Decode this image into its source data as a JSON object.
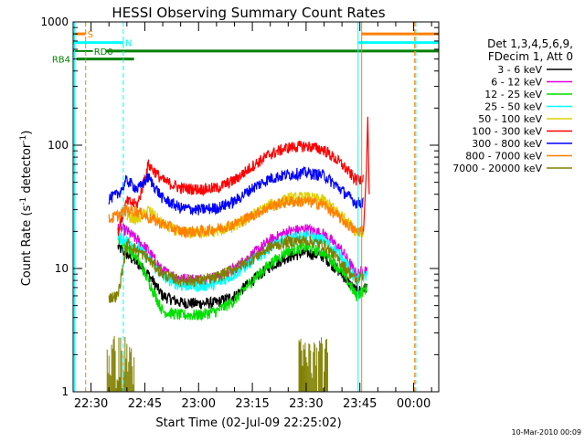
{
  "chart_data": {
    "type": "line",
    "title": "HESSI Observing Summary Count Rates",
    "xlabel": "Start Time (02-Jul-09 22:25:02)",
    "ylabel": "Count Rate (s⁻¹ detector⁻¹)",
    "ylabel_main": "Count Rate (s",
    "ylabel_sup1": "-1",
    "ylabel_mid": " detector",
    "ylabel_sup2": "-1",
    "ylabel_end": ")",
    "y_scale": "log",
    "ylim": [
      1,
      1000
    ],
    "y_ticks": [
      "1",
      "10",
      "100",
      "1000"
    ],
    "xlim_minutes": [
      -5,
      97
    ],
    "x_ticks": [
      {
        "label": "22:30",
        "minute": 0
      },
      {
        "label": "22:45",
        "minute": 15
      },
      {
        "label": "23:00",
        "minute": 30
      },
      {
        "label": "23:15",
        "minute": 45
      },
      {
        "label": "23:30",
        "minute": 60
      },
      {
        "label": "23:45",
        "minute": 75
      },
      {
        "label": "00:00",
        "minute": 90
      }
    ],
    "grid": false,
    "legend_position": "right",
    "legend_header": [
      "Det 1,3,4,5,6,9,",
      "FDecim 1, Att 0"
    ],
    "timestamp": "10-Mar-2010 00:09",
    "flag_labels": {
      "s": "S",
      "n": "N",
      "rd0": "RD0",
      "rb4": "RB4"
    },
    "series": [
      {
        "name": "3 - 6 keV",
        "color": "#000000",
        "anchors": [
          [
            7.5,
            15
          ],
          [
            10,
            13
          ],
          [
            13,
            11
          ],
          [
            16,
            9
          ],
          [
            20,
            6
          ],
          [
            25,
            5.3
          ],
          [
            30,
            5.2
          ],
          [
            35,
            5.3
          ],
          [
            40,
            6
          ],
          [
            45,
            8
          ],
          [
            50,
            10.5
          ],
          [
            55,
            12.5
          ],
          [
            60,
            13.5
          ],
          [
            65,
            12.5
          ],
          [
            70,
            9
          ],
          [
            74,
            6.5
          ],
          [
            77,
            7
          ]
        ]
      },
      {
        "name": "6 - 12 keV",
        "color": "#e000e0",
        "anchors": [
          [
            7.5,
            22
          ],
          [
            10,
            20
          ],
          [
            13,
            17
          ],
          [
            16,
            14
          ],
          [
            20,
            9.5
          ],
          [
            25,
            8.3
          ],
          [
            30,
            8.2
          ],
          [
            35,
            8.5
          ],
          [
            40,
            10
          ],
          [
            45,
            13
          ],
          [
            50,
            17
          ],
          [
            55,
            20
          ],
          [
            60,
            21
          ],
          [
            65,
            19
          ],
          [
            70,
            14
          ],
          [
            74,
            9
          ],
          [
            77,
            10
          ]
        ]
      },
      {
        "name": "12 - 25 keV",
        "color": "#00e000",
        "anchors": [
          [
            7.5,
            18
          ],
          [
            10,
            15
          ],
          [
            13,
            12
          ],
          [
            16,
            8
          ],
          [
            20,
            4.5
          ],
          [
            25,
            4.2
          ],
          [
            30,
            4.2
          ],
          [
            35,
            4.5
          ],
          [
            40,
            5.5
          ],
          [
            45,
            8
          ],
          [
            50,
            11
          ],
          [
            55,
            14
          ],
          [
            60,
            15
          ],
          [
            65,
            13.5
          ],
          [
            70,
            9.5
          ],
          [
            74,
            6
          ],
          [
            77,
            7
          ]
        ]
      },
      {
        "name": "25 - 50 keV",
        "color": "#00ffff",
        "anchors": [
          [
            7.5,
            18
          ],
          [
            10,
            17
          ],
          [
            13,
            15
          ],
          [
            16,
            12
          ],
          [
            20,
            8.5
          ],
          [
            25,
            7.3
          ],
          [
            30,
            7.2
          ],
          [
            35,
            7.5
          ],
          [
            40,
            9
          ],
          [
            45,
            11.5
          ],
          [
            50,
            15
          ],
          [
            55,
            17.5
          ],
          [
            60,
            18.5
          ],
          [
            65,
            17
          ],
          [
            70,
            12.5
          ],
          [
            74,
            8
          ],
          [
            77,
            9
          ]
        ]
      },
      {
        "name": "50 - 100 keV",
        "color": "#e0d000",
        "anchors": [
          [
            10,
            27
          ],
          [
            13,
            25
          ],
          [
            16,
            30
          ],
          [
            20,
            23
          ],
          [
            25,
            19.5
          ],
          [
            30,
            19.5
          ],
          [
            35,
            20
          ],
          [
            40,
            22
          ],
          [
            45,
            27
          ],
          [
            50,
            33
          ],
          [
            55,
            37
          ],
          [
            60,
            38
          ],
          [
            65,
            36
          ],
          [
            70,
            27
          ],
          [
            74,
            20
          ],
          [
            76,
            20
          ]
        ]
      },
      {
        "name": "100 - 300 keV",
        "color": "#ff0000",
        "anchors": [
          [
            7.5,
            20
          ],
          [
            10,
            35
          ],
          [
            13,
            33
          ],
          [
            16,
            70
          ],
          [
            20,
            52
          ],
          [
            25,
            45
          ],
          [
            30,
            44
          ],
          [
            35,
            45
          ],
          [
            40,
            52
          ],
          [
            45,
            68
          ],
          [
            50,
            85
          ],
          [
            55,
            96
          ],
          [
            60,
            99
          ],
          [
            65,
            92
          ],
          [
            70,
            70
          ],
          [
            74,
            52
          ],
          [
            76,
            55
          ]
        ]
      },
      {
        "name": "300 - 800 keV",
        "color": "#0000ff",
        "anchors": [
          [
            5,
            37
          ],
          [
            7.5,
            40
          ],
          [
            10,
            52
          ],
          [
            13,
            44
          ],
          [
            16,
            55
          ],
          [
            20,
            37
          ],
          [
            25,
            31
          ],
          [
            30,
            30
          ],
          [
            35,
            31
          ],
          [
            40,
            35
          ],
          [
            45,
            45
          ],
          [
            50,
            54
          ],
          [
            55,
            58
          ],
          [
            60,
            60
          ],
          [
            65,
            57
          ],
          [
            70,
            43
          ],
          [
            74,
            34
          ],
          [
            76,
            35
          ]
        ]
      },
      {
        "name": "800 - 7000 keV",
        "color": "#ff8000",
        "anchors": [
          [
            5,
            25
          ],
          [
            7.5,
            27
          ],
          [
            10,
            30
          ],
          [
            13,
            29
          ],
          [
            16,
            26
          ],
          [
            20,
            23
          ],
          [
            25,
            20
          ],
          [
            30,
            20
          ],
          [
            35,
            21
          ],
          [
            40,
            23
          ],
          [
            45,
            27
          ],
          [
            50,
            32
          ],
          [
            55,
            35
          ],
          [
            60,
            35
          ],
          [
            65,
            33
          ],
          [
            70,
            25
          ],
          [
            74,
            20
          ],
          [
            76,
            21
          ]
        ]
      },
      {
        "name": "7000 - 20000 keV",
        "color": "#808000",
        "anchors": [
          [
            5,
            5.8
          ],
          [
            7.5,
            6
          ],
          [
            10,
            16
          ],
          [
            13,
            14
          ],
          [
            16,
            12
          ],
          [
            20,
            9
          ],
          [
            25,
            8
          ],
          [
            30,
            8
          ],
          [
            35,
            8.5
          ],
          [
            40,
            10
          ],
          [
            45,
            12
          ],
          [
            50,
            15
          ],
          [
            55,
            16.5
          ],
          [
            60,
            17
          ],
          [
            65,
            15.5
          ],
          [
            70,
            11
          ],
          [
            74,
            8
          ],
          [
            76,
            9
          ]
        ]
      }
    ]
  }
}
